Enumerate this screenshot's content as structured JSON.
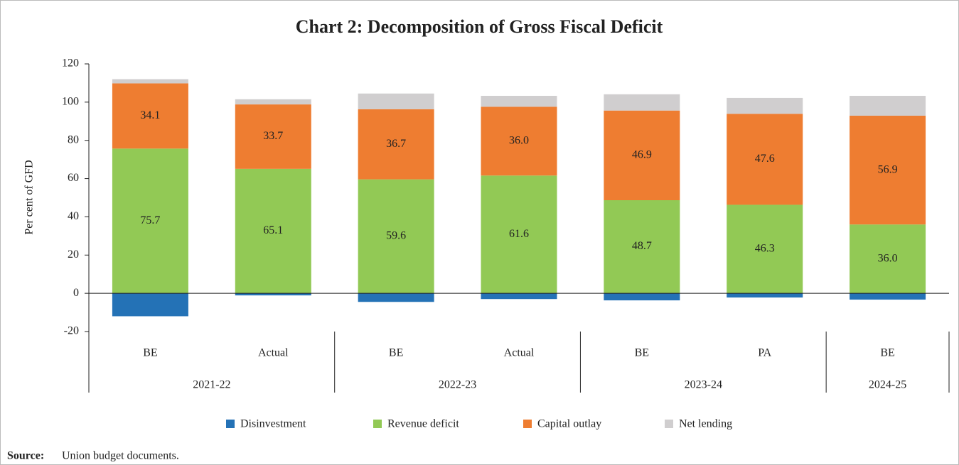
{
  "chart_data": {
    "type": "stacked-bar",
    "title": "Chart 2: Decomposition of Gross Fiscal Deficit",
    "y_label": "Per cent of GFD",
    "categories": [
      "BE",
      "Actual",
      "BE",
      "Actual",
      "BE",
      "PA",
      "BE"
    ],
    "groups": [
      {
        "name": "2021-22",
        "span": 2
      },
      {
        "name": "2022-23",
        "span": 2
      },
      {
        "name": "2023-24",
        "span": 2
      },
      {
        "name": "2024-25",
        "span": 1
      }
    ],
    "series": [
      {
        "name": "Disinvestment",
        "color": "#2472b6",
        "values": [
          -12.0,
          -1.1,
          -4.5,
          -3.0,
          -3.7,
          -2.2,
          -3.3
        ]
      },
      {
        "name": "Revenue deficit",
        "color": "#92c955",
        "values": [
          75.7,
          65.1,
          59.6,
          61.6,
          48.7,
          46.3,
          36.0
        ],
        "value_labels": [
          "75.7",
          "65.1",
          "59.6",
          "61.6",
          "48.7",
          "46.3",
          "36.0"
        ]
      },
      {
        "name": "Capital outlay",
        "color": "#ee7d31",
        "values": [
          34.1,
          33.7,
          36.7,
          36.0,
          46.9,
          47.6,
          56.9
        ],
        "value_labels": [
          "34.1",
          "33.7",
          "36.7",
          "36.0",
          "46.9",
          "47.6",
          "56.9"
        ]
      },
      {
        "name": "Net lending",
        "color": "#d0cecf",
        "values": [
          2.2,
          2.7,
          8.2,
          5.7,
          8.5,
          8.3,
          10.4
        ]
      }
    ],
    "ylim": [
      -20,
      120
    ],
    "yticks": [
      -20,
      0,
      20,
      40,
      60,
      80,
      100,
      120
    ],
    "source": {
      "label": "Source:",
      "text": "Union budget documents."
    }
  }
}
